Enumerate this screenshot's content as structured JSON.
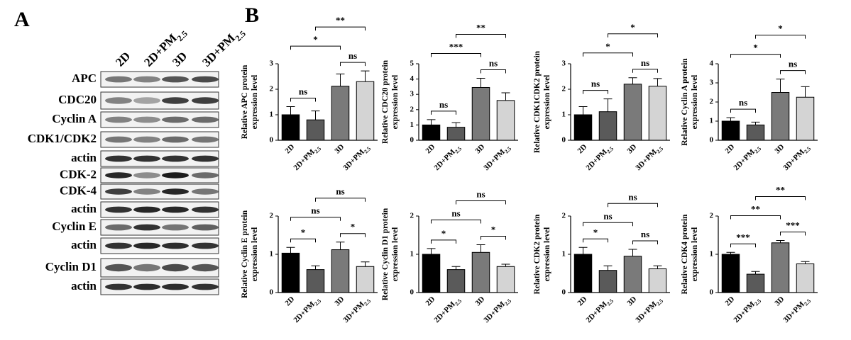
{
  "panel_a": {
    "label": "A",
    "lanes": [
      "2D",
      "2D+PM2.5",
      "3D",
      "3D+PM2.5"
    ],
    "rows": [
      "APC",
      "CDC20",
      "Cyclin A",
      "CDK1/CDK2",
      "actin",
      "CDK-2",
      "CDK-4",
      "actin",
      "Cyclin E",
      "actin",
      "Cyclin D1",
      "actin"
    ]
  },
  "panel_b_label": "B",
  "chart_data": [
    {
      "type": "bar",
      "ylabel": [
        "Relative APC protein",
        "expression level"
      ],
      "categories": [
        "2D",
        "2D+PM2.5",
        "3D",
        "3D+PM2.5"
      ],
      "values": [
        1.0,
        0.8,
        2.12,
        2.3
      ],
      "errors": [
        0.32,
        0.35,
        0.48,
        0.42
      ],
      "colors": [
        "#000000",
        "#5a5a5a",
        "#7a7a7a",
        "#d4d4d4"
      ],
      "ylim": [
        0,
        3
      ],
      "yticks": [
        0,
        1,
        2,
        3
      ],
      "comparisons": [
        {
          "pair": [
            0,
            1
          ],
          "label": "ns"
        },
        {
          "pair": [
            2,
            3
          ],
          "label": "ns"
        },
        {
          "pair": [
            0,
            2
          ],
          "label": "*"
        },
        {
          "pair": [
            1,
            3
          ],
          "label": "**"
        }
      ]
    },
    {
      "type": "bar",
      "ylabel": [
        "Relative CDC20 protein",
        "expression level"
      ],
      "categories": [
        "2D",
        "2D+PM2.5",
        "3D",
        "3D+PM2.5"
      ],
      "values": [
        1.0,
        0.85,
        3.45,
        2.6
      ],
      "errors": [
        0.35,
        0.3,
        0.6,
        0.5
      ],
      "colors": [
        "#000000",
        "#5a5a5a",
        "#7a7a7a",
        "#d4d4d4"
      ],
      "ylim": [
        0,
        5
      ],
      "yticks": [
        0,
        1,
        2,
        3,
        4,
        5
      ],
      "comparisons": [
        {
          "pair": [
            0,
            1
          ],
          "label": "ns"
        },
        {
          "pair": [
            2,
            3
          ],
          "label": "ns"
        },
        {
          "pair": [
            0,
            2
          ],
          "label": "***"
        },
        {
          "pair": [
            1,
            3
          ],
          "label": "**"
        }
      ]
    },
    {
      "type": "bar",
      "ylabel": [
        "Relative CDK1CDK2 protein",
        "expression level"
      ],
      "categories": [
        "2D",
        "2D+PM2.5",
        "3D",
        "3D+PM2.5"
      ],
      "values": [
        1.0,
        1.12,
        2.2,
        2.12
      ],
      "errors": [
        0.32,
        0.5,
        0.25,
        0.3
      ],
      "colors": [
        "#000000",
        "#5a5a5a",
        "#7a7a7a",
        "#d4d4d4"
      ],
      "ylim": [
        0,
        3
      ],
      "yticks": [
        0,
        1,
        2,
        3
      ],
      "comparisons": [
        {
          "pair": [
            0,
            1
          ],
          "label": "ns"
        },
        {
          "pair": [
            2,
            3
          ],
          "label": "ns"
        },
        {
          "pair": [
            0,
            2
          ],
          "label": "*"
        },
        {
          "pair": [
            1,
            3
          ],
          "label": "*"
        }
      ]
    },
    {
      "type": "bar",
      "ylabel": [
        "Relative Cyclin A protein",
        "expression level"
      ],
      "categories": [
        "2D",
        "2D+PM2.5",
        "3D",
        "3D+PM2.5"
      ],
      "values": [
        1.0,
        0.8,
        2.5,
        2.25
      ],
      "errors": [
        0.18,
        0.15,
        0.7,
        0.55
      ],
      "colors": [
        "#000000",
        "#5a5a5a",
        "#7a7a7a",
        "#d4d4d4"
      ],
      "ylim": [
        0,
        4
      ],
      "yticks": [
        0,
        1,
        2,
        3,
        4
      ],
      "comparisons": [
        {
          "pair": [
            0,
            1
          ],
          "label": "ns"
        },
        {
          "pair": [
            2,
            3
          ],
          "label": "ns"
        },
        {
          "pair": [
            0,
            2
          ],
          "label": "*"
        },
        {
          "pair": [
            1,
            3
          ],
          "label": "*"
        }
      ]
    },
    {
      "type": "bar",
      "ylabel": [
        "Relative Cyclin E protein",
        "expression level"
      ],
      "categories": [
        "2D",
        "2D+PM2.5",
        "3D",
        "3D+PM2.5"
      ],
      "values": [
        1.03,
        0.6,
        1.12,
        0.68
      ],
      "errors": [
        0.15,
        0.1,
        0.2,
        0.12
      ],
      "colors": [
        "#000000",
        "#5a5a5a",
        "#7a7a7a",
        "#d4d4d4"
      ],
      "ylim": [
        0,
        2
      ],
      "yticks": [
        0,
        1,
        2
      ],
      "comparisons": [
        {
          "pair": [
            0,
            1
          ],
          "label": "*"
        },
        {
          "pair": [
            2,
            3
          ],
          "label": "*"
        },
        {
          "pair": [
            0,
            2
          ],
          "label": "ns"
        },
        {
          "pair": [
            1,
            3
          ],
          "label": "ns"
        }
      ]
    },
    {
      "type": "bar",
      "ylabel": [
        "Relative Cyclin D1 protein",
        "expression level"
      ],
      "categories": [
        "2D",
        "2D+PM2.5",
        "3D",
        "3D+PM2.5"
      ],
      "values": [
        1.0,
        0.6,
        1.05,
        0.68
      ],
      "errors": [
        0.15,
        0.08,
        0.2,
        0.06
      ],
      "colors": [
        "#000000",
        "#5a5a5a",
        "#7a7a7a",
        "#d4d4d4"
      ],
      "ylim": [
        0,
        2
      ],
      "yticks": [
        0,
        1,
        2
      ],
      "comparisons": [
        {
          "pair": [
            0,
            1
          ],
          "label": "*"
        },
        {
          "pair": [
            2,
            3
          ],
          "label": "*"
        },
        {
          "pair": [
            0,
            2
          ],
          "label": "ns"
        },
        {
          "pair": [
            1,
            3
          ],
          "label": "ns"
        }
      ]
    },
    {
      "type": "bar",
      "ylabel": [
        "Relative CDK2 protein",
        "expression level"
      ],
      "categories": [
        "2D",
        "2D+PM2.5",
        "3D",
        "3D+PM2.5"
      ],
      "values": [
        1.0,
        0.58,
        0.95,
        0.62
      ],
      "errors": [
        0.18,
        0.12,
        0.18,
        0.08
      ],
      "colors": [
        "#000000",
        "#5a5a5a",
        "#7a7a7a",
        "#d4d4d4"
      ],
      "ylim": [
        0,
        2
      ],
      "yticks": [
        0,
        1,
        2
      ],
      "comparisons": [
        {
          "pair": [
            0,
            1
          ],
          "label": "*"
        },
        {
          "pair": [
            2,
            3
          ],
          "label": "ns"
        },
        {
          "pair": [
            0,
            2
          ],
          "label": "ns"
        },
        {
          "pair": [
            1,
            3
          ],
          "label": "ns"
        }
      ]
    },
    {
      "type": "bar",
      "ylabel": [
        "Relative CDK4 protein",
        "expression level"
      ],
      "categories": [
        "2D",
        "2D+PM2.5",
        "3D",
        "3D+PM2.5"
      ],
      "values": [
        1.0,
        0.48,
        1.3,
        0.75
      ],
      "errors": [
        0.05,
        0.07,
        0.06,
        0.06
      ],
      "colors": [
        "#000000",
        "#5a5a5a",
        "#7a7a7a",
        "#d4d4d4"
      ],
      "ylim": [
        0,
        2
      ],
      "yticks": [
        0,
        1,
        2
      ],
      "comparisons": [
        {
          "pair": [
            0,
            1
          ],
          "label": "***"
        },
        {
          "pair": [
            2,
            3
          ],
          "label": "***"
        },
        {
          "pair": [
            0,
            2
          ],
          "label": "**"
        },
        {
          "pair": [
            1,
            3
          ],
          "label": "**"
        }
      ]
    }
  ]
}
